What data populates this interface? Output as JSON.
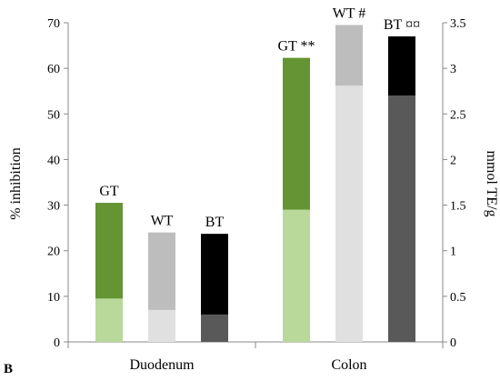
{
  "chart_data": {
    "type": "bar",
    "panel_label": "B",
    "categories": [
      "Duodenum",
      "Colon"
    ],
    "ylabel_left": "% inhibition",
    "ylabel_right": "mmol TE/g",
    "ylim_left": [
      0,
      70
    ],
    "ylim_right": [
      0,
      3.5
    ],
    "yticks_left": [
      "0",
      "10",
      "20",
      "30",
      "40",
      "50",
      "60",
      "70"
    ],
    "yticks_right": [
      "0",
      "0.5",
      "1",
      "1.5",
      "2",
      "2.5",
      "3",
      "3.5"
    ],
    "grid": false,
    "stack_note": "Each bar is a lower (light) segment plus an upper (dark) segment; total height read on the % inhibition axis.",
    "groups": [
      {
        "category": "Duodenum",
        "bars": [
          {
            "label": "GT",
            "lower": 9.5,
            "total": 30.5,
            "lower_color": "#b8d99a",
            "upper_color": "#649433"
          },
          {
            "label": "WT",
            "lower": 7,
            "total": 24,
            "lower_color": "#e0e0e0",
            "upper_color": "#bdbdbd"
          },
          {
            "label": "BT",
            "lower": 6,
            "total": 23.7,
            "lower_color": "#595959",
            "upper_color": "#000000"
          }
        ]
      },
      {
        "category": "Colon",
        "bars": [
          {
            "label": "GT **",
            "lower": 29,
            "total": 62.3,
            "lower_color": "#b8d99a",
            "upper_color": "#649433"
          },
          {
            "label": "WT #",
            "lower": 56.2,
            "total": 69.5,
            "lower_color": "#e0e0e0",
            "upper_color": "#bdbdbd"
          },
          {
            "label": "BT ¤¤",
            "lower": 54,
            "total": 67,
            "lower_color": "#595959",
            "upper_color": "#000000"
          }
        ]
      }
    ]
  }
}
